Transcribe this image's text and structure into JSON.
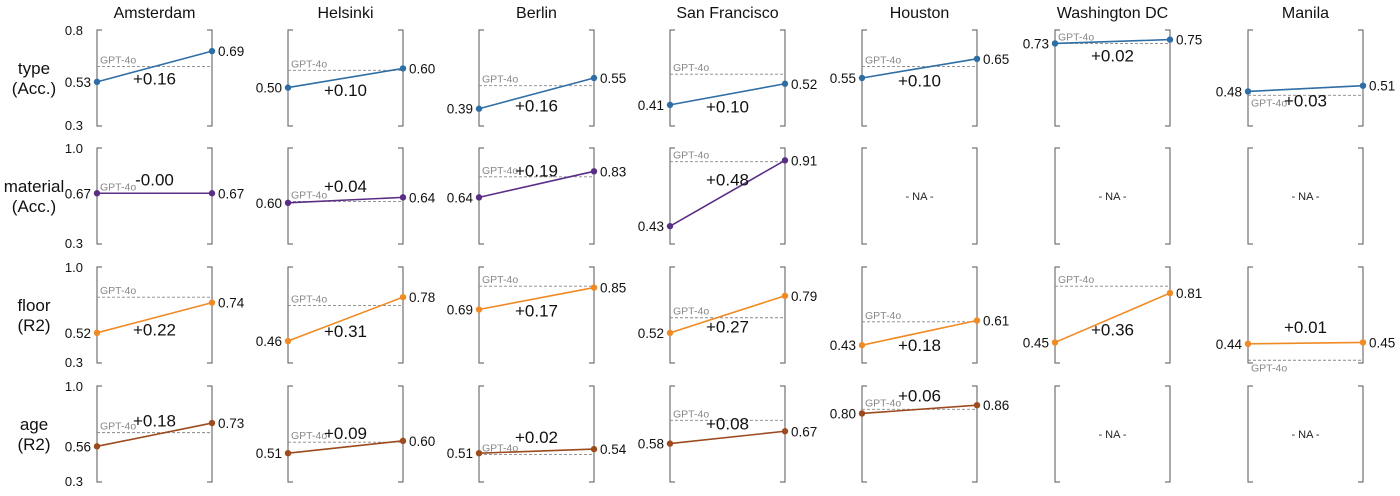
{
  "chart_data": {
    "type": "line",
    "title": "",
    "reference_label": "GPT-4o",
    "cities": [
      "Amsterdam",
      "Helsinki",
      "Berlin",
      "San Francisco",
      "Houston",
      "Washington DC",
      "Manila"
    ],
    "rows": [
      {
        "key": "type",
        "label_line1": "type",
        "label_line2": "(Acc.)",
        "color": "#2f6ea5",
        "ylim": [
          0.3,
          0.8
        ],
        "y_ticks": [
          "0.8",
          "0.3"
        ],
        "cells": [
          {
            "start": 0.53,
            "end": 0.69,
            "gpt4o": 0.61,
            "start_label": "0.53",
            "end_label": "0.69",
            "delta": "+0.16"
          },
          {
            "start": 0.5,
            "end": 0.6,
            "gpt4o": 0.59,
            "start_label": "0.50",
            "end_label": "0.60",
            "delta": "+0.10"
          },
          {
            "start": 0.39,
            "end": 0.55,
            "gpt4o": 0.51,
            "start_label": "0.39",
            "end_label": "0.55",
            "delta": "+0.16"
          },
          {
            "start": 0.41,
            "end": 0.52,
            "gpt4o": 0.57,
            "start_label": "0.41",
            "end_label": "0.52",
            "delta": "+0.10"
          },
          {
            "start": 0.55,
            "end": 0.65,
            "gpt4o": 0.61,
            "start_label": "0.55",
            "end_label": "0.65",
            "delta": "+0.10"
          },
          {
            "start": 0.73,
            "end": 0.75,
            "gpt4o": 0.73,
            "start_label": "0.73",
            "end_label": "0.75",
            "delta": "+0.02"
          },
          {
            "start": 0.48,
            "end": 0.51,
            "gpt4o": 0.46,
            "start_label": "0.48",
            "end_label": "0.51",
            "delta": "+0.03"
          }
        ]
      },
      {
        "key": "material",
        "label_line1": "material",
        "label_line2": "(Acc.)",
        "color": "#5b2e86",
        "ylim": [
          0.3,
          1.0
        ],
        "y_ticks": [
          "1.0",
          "0.3"
        ],
        "cells": [
          {
            "start": 0.67,
            "end": 0.67,
            "gpt4o": 0.67,
            "start_label": "0.67",
            "end_label": "0.67",
            "delta": "-0.00"
          },
          {
            "start": 0.6,
            "end": 0.64,
            "gpt4o": 0.61,
            "start_label": "0.60",
            "end_label": "0.64",
            "delta": "+0.04"
          },
          {
            "start": 0.64,
            "end": 0.83,
            "gpt4o": 0.79,
            "start_label": "0.64",
            "end_label": "0.83",
            "delta": "+0.19"
          },
          {
            "start": 0.43,
            "end": 0.91,
            "gpt4o": 0.9,
            "start_label": "0.43",
            "end_label": "0.91",
            "delta": "+0.48"
          },
          {
            "na": true,
            "na_label": "- NA -"
          },
          {
            "na": true,
            "na_label": "- NA -"
          },
          {
            "na": true,
            "na_label": "- NA -"
          }
        ]
      },
      {
        "key": "floor",
        "label_line1": "floor",
        "label_line2": "(R2)",
        "color": "#f08a24",
        "ylim": [
          0.3,
          1.0
        ],
        "y_ticks": [
          "1.0",
          "0.3"
        ],
        "cells": [
          {
            "start": 0.52,
            "end": 0.74,
            "gpt4o": 0.78,
            "start_label": "0.52",
            "end_label": "0.74",
            "delta": "+0.22"
          },
          {
            "start": 0.46,
            "end": 0.78,
            "gpt4o": 0.72,
            "start_label": "0.46",
            "end_label": "0.78",
            "delta": "+0.31"
          },
          {
            "start": 0.69,
            "end": 0.85,
            "gpt4o": 0.86,
            "start_label": "0.69",
            "end_label": "0.85",
            "delta": "+0.17"
          },
          {
            "start": 0.52,
            "end": 0.79,
            "gpt4o": 0.63,
            "start_label": "0.52",
            "end_label": "0.79",
            "delta": "+0.27"
          },
          {
            "start": 0.43,
            "end": 0.61,
            "gpt4o": 0.6,
            "start_label": "0.43",
            "end_label": "0.61",
            "delta": "+0.18"
          },
          {
            "start": 0.45,
            "end": 0.81,
            "gpt4o": 0.86,
            "start_label": "0.45",
            "end_label": "0.81",
            "delta": "+0.36"
          },
          {
            "start": 0.44,
            "end": 0.45,
            "gpt4o": 0.32,
            "start_label": "0.44",
            "end_label": "0.45",
            "delta": "+0.01"
          }
        ]
      },
      {
        "key": "age",
        "label_line1": "age",
        "label_line2": "(R2)",
        "color": "#9c4a1e",
        "ylim": [
          0.3,
          1.0
        ],
        "y_ticks": [
          "1.0",
          "0.3"
        ],
        "cells": [
          {
            "start": 0.56,
            "end": 0.73,
            "gpt4o": 0.66,
            "start_label": "0.56",
            "end_label": "0.73",
            "delta": "+0.18"
          },
          {
            "start": 0.51,
            "end": 0.6,
            "gpt4o": 0.59,
            "start_label": "0.51",
            "end_label": "0.60",
            "delta": "+0.09"
          },
          {
            "start": 0.51,
            "end": 0.54,
            "gpt4o": 0.5,
            "start_label": "0.51",
            "end_label": "0.54",
            "delta": "+0.02"
          },
          {
            "start": 0.58,
            "end": 0.67,
            "gpt4o": 0.75,
            "start_label": "0.58",
            "end_label": "0.67",
            "delta": "+0.08"
          },
          {
            "start": 0.8,
            "end": 0.86,
            "gpt4o": 0.83,
            "start_label": "0.80",
            "end_label": "0.86",
            "delta": "+0.06"
          },
          {
            "na": true,
            "na_label": "- NA -"
          },
          {
            "na": true,
            "na_label": "- NA -"
          }
        ]
      }
    ]
  }
}
